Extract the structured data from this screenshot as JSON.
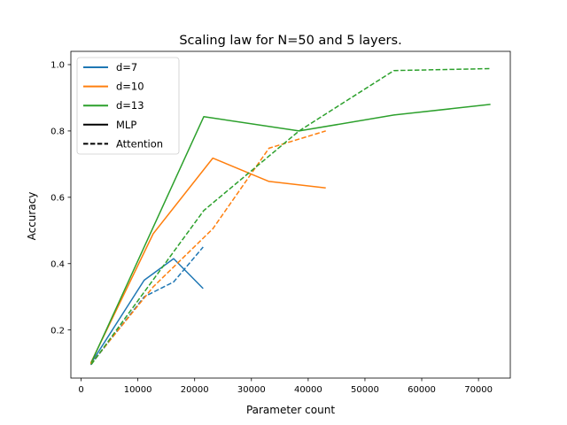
{
  "chart_data": {
    "type": "line",
    "title": "Scaling law for N=50 and 5 layers.",
    "xlabel": "Parameter count",
    "ylabel": "Accuracy",
    "xlim": [
      -1800,
      75600
    ],
    "ylim": [
      0.055,
      1.04
    ],
    "xticks": [
      0,
      10000,
      20000,
      30000,
      40000,
      50000,
      60000,
      70000
    ],
    "yticks": [
      0.2,
      0.4,
      0.6,
      0.8,
      1.0
    ],
    "legend_position": "top-left",
    "legend": [
      {
        "label": "d=7",
        "color": "#1f77b4",
        "style": "solid"
      },
      {
        "label": "d=10",
        "color": "#ff7f0e",
        "style": "solid"
      },
      {
        "label": "d=13",
        "color": "#2ca02c",
        "style": "solid"
      },
      {
        "label": "MLP",
        "color": "#000000",
        "style": "solid"
      },
      {
        "label": "Attention",
        "color": "#000000",
        "style": "dashed"
      }
    ],
    "series": [
      {
        "d": "d=7",
        "model": "MLP",
        "color": "#1f77b4",
        "dashed": false,
        "x": [
          1700,
          11100,
          16300,
          21500
        ],
        "y": [
          0.098,
          0.35,
          0.415,
          0.325
        ]
      },
      {
        "d": "d=7",
        "model": "Attention",
        "color": "#1f77b4",
        "dashed": true,
        "x": [
          1700,
          11100,
          16300,
          21500
        ],
        "y": [
          0.095,
          0.3,
          0.345,
          0.45
        ]
      },
      {
        "d": "d=10",
        "model": "MLP",
        "color": "#ff7f0e",
        "dashed": false,
        "x": [
          1700,
          12700,
          23200,
          33100,
          43100
        ],
        "y": [
          0.1,
          0.49,
          0.718,
          0.648,
          0.628
        ]
      },
      {
        "d": "d=10",
        "model": "Attention",
        "color": "#ff7f0e",
        "dashed": true,
        "x": [
          1700,
          12700,
          23200,
          33100,
          43100
        ],
        "y": [
          0.097,
          0.33,
          0.505,
          0.748,
          0.8
        ]
      },
      {
        "d": "d=13",
        "model": "MLP",
        "color": "#2ca02c",
        "dashed": false,
        "x": [
          1800,
          21600,
          38400,
          55100,
          72100
        ],
        "y": [
          0.102,
          0.843,
          0.8,
          0.848,
          0.88
        ]
      },
      {
        "d": "d=13",
        "model": "Attention",
        "color": "#2ca02c",
        "dashed": true,
        "x": [
          1800,
          21600,
          38400,
          55100,
          72100
        ],
        "y": [
          0.096,
          0.56,
          0.8,
          0.982,
          0.988
        ]
      }
    ]
  }
}
